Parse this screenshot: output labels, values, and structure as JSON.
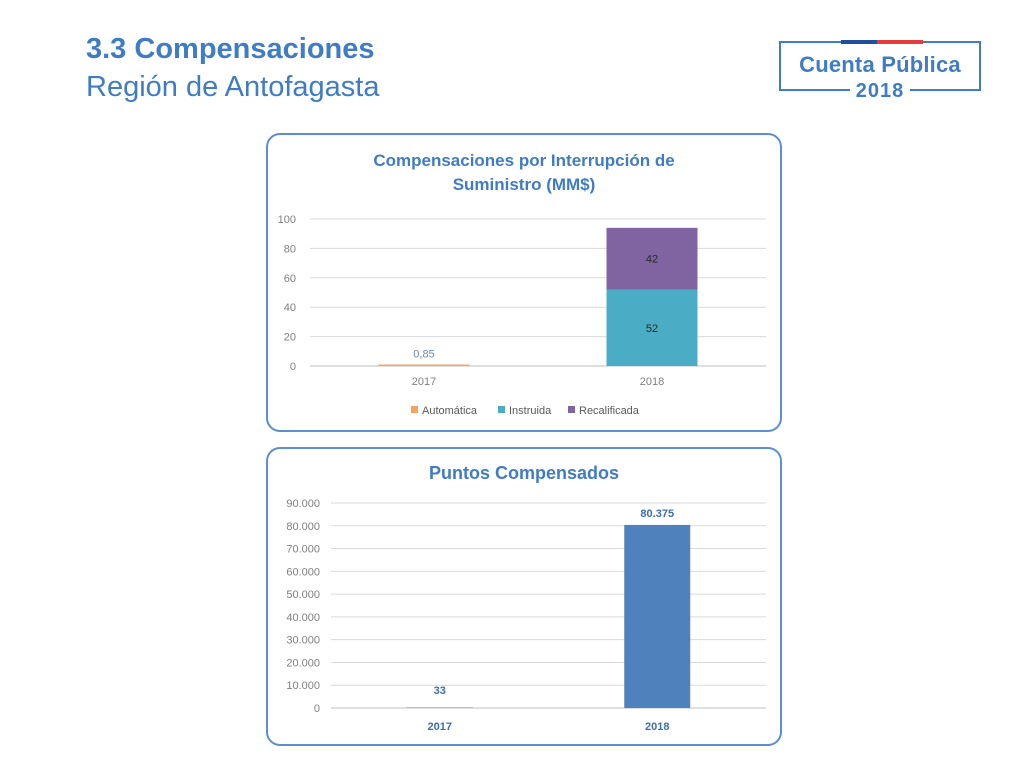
{
  "header": {
    "title": "3.3 Compensaciones",
    "subtitle": "Región de Antofagasta"
  },
  "logo": {
    "name": "Cuenta Pública",
    "year": "2018"
  },
  "colors": {
    "accent": "#3f7cc4",
    "automatica": "#f4a460",
    "instruida": "#4bacc6",
    "recalificada": "#8064a2",
    "puntos": "#4f81bd"
  },
  "chart_data": [
    {
      "type": "bar",
      "stacked": true,
      "title": "Compensaciones por Interrupción de Suministro (MM$)",
      "categories": [
        "2017",
        "2018"
      ],
      "series": [
        {
          "name": "Automática",
          "values": [
            0.85,
            0
          ],
          "labels": [
            "0,85",
            ""
          ]
        },
        {
          "name": "Instruida",
          "values": [
            0,
            52
          ],
          "labels": [
            "",
            "52"
          ]
        },
        {
          "name": "Recalificada",
          "values": [
            0,
            42
          ],
          "labels": [
            "",
            "42"
          ]
        }
      ],
      "ylim": [
        0,
        100
      ],
      "yticks": [
        "0",
        "20",
        "40",
        "60",
        "80",
        "100"
      ],
      "grid": true,
      "legend": "bottom"
    },
    {
      "type": "bar",
      "title": "Puntos Compensados",
      "categories": [
        "2017",
        "2018"
      ],
      "values": [
        33,
        80375
      ],
      "labels": [
        "33",
        "80.375"
      ],
      "ylim": [
        0,
        90000
      ],
      "yticks": [
        "0",
        "10.000",
        "20.000",
        "30.000",
        "40.000",
        "50.000",
        "60.000",
        "70.000",
        "80.000",
        "90.000"
      ],
      "grid": true,
      "legend": "none"
    }
  ]
}
